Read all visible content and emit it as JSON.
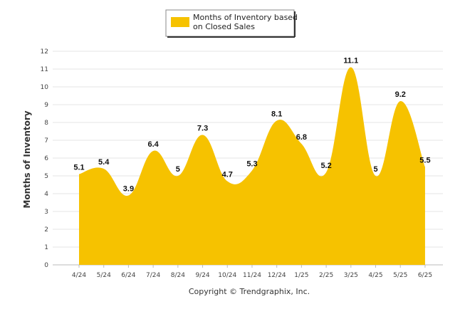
{
  "chart_data": {
    "type": "area",
    "categories": [
      "4/24",
      "5/24",
      "6/24",
      "7/24",
      "8/24",
      "9/24",
      "10/24",
      "11/24",
      "12/24",
      "1/25",
      "2/25",
      "3/25",
      "4/25",
      "5/25",
      "6/25"
    ],
    "series": [
      {
        "name": "Months of Inventory based on Closed Sales",
        "values": [
          5.1,
          5.4,
          3.9,
          6.4,
          5,
          7.3,
          4.7,
          5.3,
          8.1,
          6.8,
          5.2,
          11.1,
          5,
          9.2,
          5.5
        ],
        "labels": [
          "5.1",
          "5.4",
          "3.9",
          "6.4",
          "5",
          "7.3",
          "4.7",
          "5.3",
          "8.1",
          "6.8",
          "5.2",
          "11.1",
          "5",
          "9.2",
          "5.5"
        ],
        "color": "#f6c200"
      }
    ],
    "ylabel": "Months of Inventory",
    "ylim": [
      0,
      12
    ],
    "yticks": [
      "0",
      "1",
      "2",
      "3",
      "4",
      "5",
      "6",
      "7",
      "8",
      "9",
      "10",
      "11",
      "12"
    ],
    "grid": true,
    "legend_position": "top-center"
  },
  "legend": {
    "line1": "Months of Inventory based",
    "line2": "on Closed Sales"
  },
  "credit": "Copyright © Trendgraphix, Inc."
}
